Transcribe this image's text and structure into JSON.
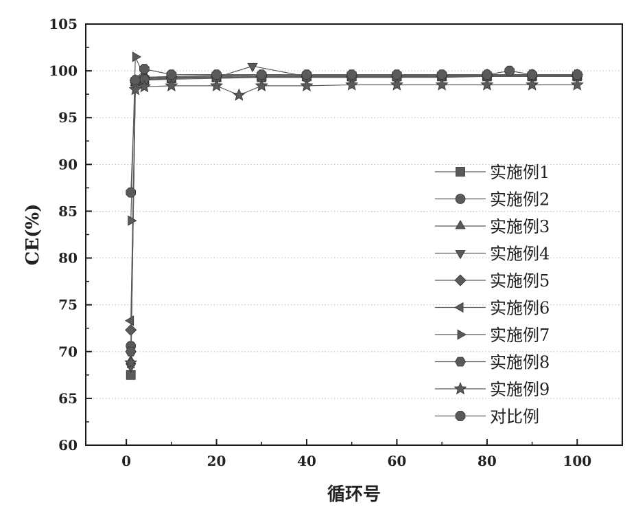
{
  "chart_data": {
    "type": "line",
    "xlabel": "循环号",
    "ylabel": "CE(%)",
    "xlim": [
      -9,
      110
    ],
    "ylim": [
      60,
      105
    ],
    "xticks": [
      0,
      20,
      40,
      60,
      80,
      100
    ],
    "yticks": [
      60,
      65,
      70,
      75,
      80,
      85,
      90,
      95,
      100,
      105
    ],
    "grid": "horizontal-dotted",
    "legend_position": "right",
    "colors": {
      "axis": "#1a1a1a",
      "series": "#5a5a5a",
      "grid": "#bbbbbb"
    },
    "series": [
      {
        "name": "实施例1",
        "marker": "square",
        "x": [
          1,
          2,
          4,
          10,
          20,
          30,
          40,
          50,
          60,
          70,
          80,
          90,
          100
        ],
        "y": [
          67.5,
          98.8,
          99.0,
          99.2,
          99.3,
          99.3,
          99.4,
          99.4,
          99.4,
          99.4,
          99.4,
          99.4,
          99.4
        ]
      },
      {
        "name": "实施例2",
        "marker": "circle",
        "x": [
          1,
          2,
          4,
          10,
          20,
          30,
          40,
          50,
          60,
          70,
          80,
          90,
          100
        ],
        "y": [
          70.6,
          98.9,
          99.2,
          99.3,
          99.3,
          99.4,
          99.4,
          99.4,
          99.4,
          99.5,
          99.5,
          99.5,
          99.5
        ]
      },
      {
        "name": "实施例3",
        "marker": "triangle-up",
        "x": [
          1,
          2,
          4,
          10,
          20,
          30,
          40,
          50,
          60,
          70,
          80,
          90,
          100
        ],
        "y": [
          69.0,
          98.7,
          99.0,
          99.1,
          99.2,
          99.3,
          99.3,
          99.3,
          99.3,
          99.3,
          99.4,
          99.4,
          99.4
        ]
      },
      {
        "name": "实施例4",
        "marker": "triangle-down",
        "x": [
          1,
          2,
          4,
          10,
          20,
          28,
          40,
          50,
          60,
          70,
          80,
          90,
          100
        ],
        "y": [
          68.4,
          98.9,
          99.2,
          99.3,
          99.3,
          100.5,
          99.4,
          99.4,
          99.3,
          99.4,
          99.4,
          99.4,
          99.4
        ]
      },
      {
        "name": "实施例5",
        "marker": "diamond",
        "x": [
          1,
          2,
          4,
          10,
          20,
          30,
          40,
          50,
          60,
          70,
          80,
          90,
          100
        ],
        "y": [
          72.3,
          99.0,
          99.3,
          99.4,
          99.4,
          99.5,
          99.5,
          99.5,
          99.5,
          99.5,
          99.6,
          99.6,
          99.6
        ]
      },
      {
        "name": "实施例6",
        "marker": "triangle-left",
        "x": [
          1,
          2,
          4,
          10,
          20,
          30,
          40,
          50,
          60,
          70,
          80,
          90,
          100
        ],
        "y": [
          73.3,
          99.0,
          99.2,
          99.3,
          99.3,
          99.4,
          99.4,
          99.4,
          99.4,
          99.4,
          99.4,
          99.4,
          99.5
        ]
      },
      {
        "name": "实施例7",
        "marker": "triangle-right",
        "x": [
          1,
          2,
          4,
          10,
          20,
          30,
          40,
          50,
          60,
          70,
          80,
          90,
          100
        ],
        "y": [
          84.0,
          101.5,
          99.3,
          99.4,
          99.5,
          99.5,
          99.5,
          99.5,
          99.5,
          99.5,
          99.5,
          99.6,
          99.6
        ]
      },
      {
        "name": "实施例8",
        "marker": "hexagon",
        "x": [
          1,
          2,
          4,
          10,
          20,
          30,
          40,
          50,
          60,
          70,
          80,
          90,
          100
        ],
        "y": [
          70.0,
          98.8,
          99.1,
          99.2,
          99.3,
          99.3,
          99.3,
          99.3,
          99.3,
          99.4,
          99.4,
          99.4,
          99.4
        ]
      },
      {
        "name": "实施例9",
        "marker": "star",
        "x": [
          1,
          2,
          4,
          10,
          20,
          25,
          30,
          40,
          50,
          60,
          70,
          80,
          90,
          100
        ],
        "y": [
          68.8,
          98.0,
          98.3,
          98.4,
          98.4,
          97.4,
          98.4,
          98.4,
          98.5,
          98.5,
          98.5,
          98.5,
          98.5,
          98.5
        ]
      },
      {
        "name": "对比例",
        "marker": "octagon",
        "x": [
          1,
          2,
          4,
          10,
          20,
          30,
          40,
          50,
          60,
          70,
          80,
          85,
          90,
          100
        ],
        "y": [
          87.0,
          99.0,
          100.2,
          99.6,
          99.6,
          99.6,
          99.6,
          99.6,
          99.6,
          99.6,
          99.6,
          100.0,
          99.6,
          99.6
        ]
      }
    ]
  }
}
